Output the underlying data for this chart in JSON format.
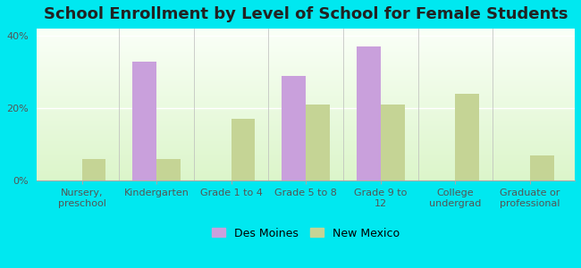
{
  "title": "School Enrollment by Level of School for Female Students",
  "categories": [
    "Nursery,\npreschool",
    "Kindergarten",
    "Grade 1 to 4",
    "Grade 5 to 8",
    "Grade 9 to\n12",
    "College\nundergrad",
    "Graduate or\nprofessional"
  ],
  "des_moines": [
    0,
    33,
    0,
    29,
    37,
    0,
    0
  ],
  "new_mexico": [
    6,
    6,
    17,
    21,
    21,
    24,
    7
  ],
  "des_moines_color": "#c9a0dc",
  "new_mexico_color": "#c5d495",
  "background_color": "#00e8f0",
  "ylim": [
    0,
    42
  ],
  "yticks": [
    0,
    20,
    40
  ],
  "ytick_labels": [
    "0%",
    "20%",
    "40%"
  ],
  "bar_width": 0.32,
  "legend_labels": [
    "Des Moines",
    "New Mexico"
  ],
  "title_fontsize": 13,
  "tick_fontsize": 8.0,
  "legend_fontsize": 9
}
